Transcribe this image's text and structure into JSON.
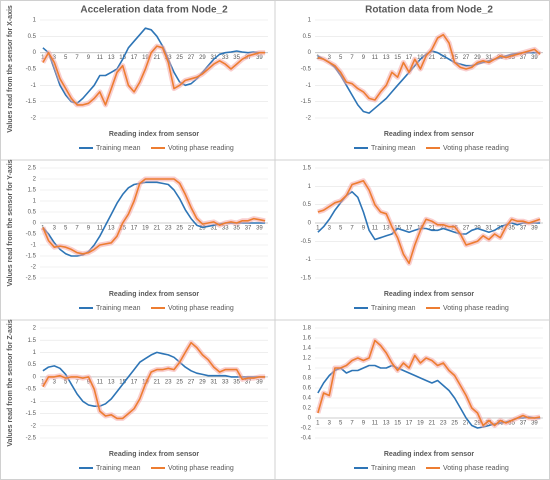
{
  "chart_data": [
    {
      "type": "line",
      "title": "Acceleration data from Node_2",
      "y_label": "Values read from the sensor for X-axis",
      "x_label": "Reading index from sensor",
      "categories": [
        1,
        null,
        3,
        null,
        5,
        null,
        7,
        null,
        9,
        null,
        11,
        null,
        13,
        null,
        15,
        null,
        17,
        null,
        19,
        null,
        21,
        null,
        23,
        null,
        25,
        null,
        27,
        null,
        29,
        null,
        31,
        null,
        33,
        null,
        35,
        null,
        37,
        null,
        39,
        null
      ],
      "ylim": [
        -2,
        1
      ],
      "yticks": [
        -2,
        -1.5,
        -1,
        -0.5,
        0,
        0.5,
        1
      ],
      "grid": true,
      "legend": "bottom",
      "series": [
        {
          "name": "Training mean",
          "color": "#2e75b6",
          "values": [
            0.15,
            0,
            -0.5,
            -1,
            -1.3,
            -1.5,
            -1.55,
            -1.4,
            -1.2,
            -1.0,
            -0.7,
            -0.7,
            -0.6,
            -0.5,
            -0.2,
            0.15,
            0.35,
            0.55,
            0.75,
            0.7,
            0.5,
            0.2,
            -0.2,
            -0.6,
            -0.9,
            -1.0,
            -0.95,
            -0.8,
            -0.6,
            -0.4,
            -0.2,
            -0.05,
            0,
            0.02,
            0.05,
            0.02,
            0,
            0.02,
            0,
            0
          ]
        },
        {
          "name": "Voting phase reading",
          "color": "#ed7d31",
          "values": [
            -0.3,
            0,
            -0.3,
            -0.8,
            -1.1,
            -1.4,
            -1.6,
            -1.6,
            -1.55,
            -1.4,
            -1.2,
            -1.6,
            -1.1,
            -0.6,
            -0.4,
            -1.0,
            -1.2,
            -0.9,
            -0.5,
            0,
            0.2,
            0.15,
            -0.3,
            -1.1,
            -1.0,
            -0.85,
            -0.8,
            -0.75,
            -0.65,
            -0.5,
            -0.35,
            -0.25,
            -0.35,
            -0.5,
            -0.35,
            -0.2,
            -0.1,
            -0.05,
            0,
            0
          ]
        }
      ]
    },
    {
      "type": "line",
      "title": "Rotation data from Node_2",
      "x_label": "Reading index from sensor",
      "categories": [
        1,
        null,
        3,
        null,
        5,
        null,
        7,
        null,
        9,
        null,
        11,
        null,
        13,
        null,
        15,
        null,
        17,
        null,
        19,
        null,
        21,
        null,
        23,
        null,
        25,
        null,
        27,
        null,
        29,
        null,
        31,
        null,
        33,
        null,
        35,
        null,
        37,
        null,
        39,
        null
      ],
      "ylim": [
        -2,
        1
      ],
      "yticks": [
        -2,
        -1.5,
        -1,
        -0.5,
        0,
        0.5,
        1
      ],
      "grid": true,
      "legend": "bottom",
      "series": [
        {
          "name": "Training mean",
          "color": "#2e75b6",
          "values": [
            -0.1,
            -0.2,
            -0.3,
            -0.45,
            -0.7,
            -1.0,
            -1.3,
            -1.6,
            -1.8,
            -1.85,
            -1.7,
            -1.55,
            -1.4,
            -1.2,
            -1.0,
            -0.8,
            -0.6,
            -0.4,
            -0.2,
            -0.05,
            0.05,
            0,
            -0.1,
            -0.2,
            -0.3,
            -0.35,
            -0.4,
            -0.4,
            -0.35,
            -0.3,
            -0.25,
            -0.2,
            -0.15,
            -0.1,
            -0.05,
            -0.03,
            0,
            0,
            0,
            0
          ]
        },
        {
          "name": "Voting phase reading",
          "color": "#ed7d31",
          "values": [
            -0.15,
            -0.2,
            -0.3,
            -0.4,
            -0.6,
            -0.9,
            -0.95,
            -1.1,
            -1.2,
            -1.4,
            -1.45,
            -1.2,
            -1.0,
            -0.6,
            -0.75,
            -0.3,
            -0.6,
            -0.2,
            -0.5,
            -0.1,
            0.1,
            0.45,
            0.55,
            0.3,
            -0.3,
            -0.45,
            -0.5,
            -0.45,
            -0.3,
            -0.25,
            -0.3,
            -0.2,
            -0.1,
            -0.15,
            -0.1,
            -0.05,
            0,
            0.05,
            0.1,
            -0.05
          ]
        }
      ]
    },
    {
      "type": "line",
      "y_label": "Values read from the sensor for Y-axis",
      "x_label": "Reading index from sensor",
      "categories": [
        1,
        null,
        3,
        null,
        5,
        null,
        7,
        null,
        9,
        null,
        11,
        null,
        13,
        null,
        15,
        null,
        17,
        null,
        19,
        null,
        21,
        null,
        23,
        null,
        25,
        null,
        27,
        null,
        29,
        null,
        31,
        null,
        33,
        null,
        35,
        null,
        37,
        null,
        39,
        null
      ],
      "ylim": [
        -2.5,
        2.5
      ],
      "yticks": [
        -2.5,
        -2,
        -1.5,
        -1,
        -0.5,
        0,
        0.5,
        1,
        1.5,
        2,
        2.5
      ],
      "grid": true,
      "legend": "bottom",
      "series": [
        {
          "name": "Training mean",
          "color": "#2e75b6",
          "values": [
            -0.2,
            -0.5,
            -0.9,
            -1.2,
            -1.4,
            -1.5,
            -1.5,
            -1.45,
            -1.3,
            -1.0,
            -0.6,
            -0.1,
            0.4,
            0.9,
            1.3,
            1.6,
            1.75,
            1.8,
            1.85,
            1.85,
            1.85,
            1.8,
            1.75,
            1.5,
            1.1,
            0.6,
            0.2,
            -0.1,
            -0.2,
            -0.15,
            -0.1,
            -0.05,
            0,
            0,
            0,
            0,
            0,
            0,
            0,
            0
          ]
        },
        {
          "name": "Voting phase reading",
          "color": "#ed7d31",
          "values": [
            -0.2,
            -0.8,
            -1.1,
            -1.05,
            -1.1,
            -1.2,
            -1.35,
            -1.4,
            -1.35,
            -1.2,
            -1.0,
            -0.95,
            -0.9,
            -0.6,
            0,
            0.4,
            1.0,
            1.8,
            2.0,
            2.0,
            2.0,
            2.0,
            2.0,
            2.0,
            1.8,
            1.3,
            0.7,
            0.2,
            -0.05,
            0,
            0.05,
            -0.1,
            0,
            0.05,
            0,
            0.1,
            0.1,
            0.2,
            0.15,
            0.1
          ]
        }
      ]
    },
    {
      "type": "line",
      "x_label": "Reading index from sensor",
      "categories": [
        1,
        null,
        3,
        null,
        5,
        null,
        7,
        null,
        9,
        null,
        11,
        null,
        13,
        null,
        15,
        null,
        17,
        null,
        19,
        null,
        21,
        null,
        23,
        null,
        25,
        null,
        27,
        null,
        29,
        null,
        31,
        null,
        33,
        null,
        35,
        null,
        37,
        null,
        39,
        null
      ],
      "ylim": [
        -1.5,
        1.5
      ],
      "yticks": [
        -1.5,
        -1,
        -0.5,
        0,
        0.5,
        1,
        1.5
      ],
      "grid": true,
      "legend": "bottom",
      "series": [
        {
          "name": "Training mean",
          "color": "#2e75b6",
          "values": [
            -0.25,
            -0.1,
            0.1,
            0.35,
            0.55,
            0.75,
            0.85,
            0.7,
            0.3,
            -0.2,
            -0.45,
            -0.4,
            -0.35,
            -0.3,
            -0.15,
            -0.2,
            -0.25,
            -0.2,
            -0.15,
            -0.15,
            -0.2,
            -0.2,
            -0.15,
            -0.2,
            -0.25,
            -0.3,
            -0.3,
            -0.2,
            -0.15,
            -0.2,
            -0.25,
            -0.2,
            -0.1,
            -0.05,
            0,
            -0.05,
            0,
            0,
            0,
            0
          ]
        },
        {
          "name": "Voting phase reading",
          "color": "#ed7d31",
          "values": [
            0.3,
            0.35,
            0.45,
            0.55,
            0.6,
            0.75,
            1.05,
            1.1,
            1.15,
            0.9,
            0.5,
            0.3,
            0.25,
            -0.1,
            -0.4,
            -0.85,
            -1.1,
            -0.6,
            -0.2,
            0.1,
            0.05,
            -0.05,
            -0.05,
            -0.1,
            -0.1,
            -0.3,
            -0.6,
            -0.55,
            -0.5,
            -0.35,
            -0.45,
            -0.3,
            -0.4,
            -0.1,
            0.1,
            0.05,
            0.05,
            0,
            0.05,
            0.1
          ]
        }
      ]
    },
    {
      "type": "line",
      "y_label": "Values read from the sensor for Z-axis",
      "x_label": "Reading index from sensor",
      "categories": [
        1,
        null,
        3,
        null,
        5,
        null,
        7,
        null,
        9,
        null,
        11,
        null,
        13,
        null,
        15,
        null,
        17,
        null,
        19,
        null,
        21,
        null,
        23,
        null,
        25,
        null,
        27,
        null,
        29,
        null,
        31,
        null,
        33,
        null,
        35,
        null,
        37,
        null,
        39,
        null
      ],
      "ylim": [
        -2.5,
        2
      ],
      "yticks": [
        -2.5,
        -2,
        -1.5,
        -1,
        -0.5,
        0,
        0.5,
        1,
        1.5,
        2
      ],
      "grid": true,
      "legend": "bottom",
      "series": [
        {
          "name": "Training mean",
          "color": "#2e75b6",
          "values": [
            0.25,
            0.4,
            0.45,
            0.35,
            0.1,
            -0.3,
            -0.7,
            -1.0,
            -1.15,
            -1.2,
            -1.2,
            -1.1,
            -0.9,
            -0.6,
            -0.3,
            0,
            0.3,
            0.6,
            0.75,
            0.9,
            1.0,
            0.95,
            0.9,
            0.8,
            0.6,
            0.4,
            0.25,
            0.15,
            0.1,
            0.05,
            0.05,
            0.05,
            0.05,
            0,
            0,
            0,
            0,
            0,
            0,
            0
          ]
        },
        {
          "name": "Voting phase reading",
          "color": "#ed7d31",
          "values": [
            -0.4,
            0,
            0,
            0.05,
            -0.05,
            0,
            0,
            -0.05,
            0,
            -0.5,
            -1.4,
            -1.6,
            -1.55,
            -1.7,
            -1.7,
            -1.5,
            -1.3,
            -0.9,
            -0.3,
            0.2,
            0.3,
            0.3,
            0.35,
            0.3,
            0.6,
            1.0,
            1.4,
            1.2,
            0.9,
            0.7,
            0.4,
            0.2,
            0.3,
            0.3,
            0.3,
            -0.1,
            -0.05,
            -0.05,
            0,
            0
          ]
        }
      ]
    },
    {
      "type": "line",
      "x_label": "Reading index from sensor",
      "categories": [
        1,
        null,
        3,
        null,
        5,
        null,
        7,
        null,
        9,
        null,
        11,
        null,
        13,
        null,
        15,
        null,
        17,
        null,
        19,
        null,
        21,
        null,
        23,
        null,
        25,
        null,
        27,
        null,
        29,
        null,
        31,
        null,
        33,
        null,
        35,
        null,
        37,
        null,
        39,
        null
      ],
      "ylim": [
        -0.4,
        1.8
      ],
      "yticks": [
        -0.4,
        -0.2,
        0,
        0.2,
        0.4,
        0.6,
        0.8,
        1,
        1.2,
        1.4,
        1.6,
        1.8
      ],
      "grid": true,
      "legend": "bottom",
      "series": [
        {
          "name": "Training mean",
          "color": "#2e75b6",
          "values": [
            0.5,
            0.7,
            0.85,
            0.95,
            1.0,
            0.9,
            0.95,
            0.95,
            1.0,
            1.05,
            1.05,
            1.0,
            1.0,
            1.05,
            1.0,
            0.95,
            0.9,
            0.85,
            0.8,
            0.75,
            0.7,
            0.75,
            0.65,
            0.55,
            0.4,
            0.2,
            0,
            -0.15,
            -0.2,
            -0.18,
            -0.15,
            -0.12,
            -0.1,
            -0.08,
            -0.05,
            0,
            0,
            0.02,
            0,
            0
          ]
        },
        {
          "name": "Voting phase reading",
          "color": "#ed7d31",
          "values": [
            0.1,
            0.5,
            0.45,
            1.0,
            1.0,
            1.05,
            1.15,
            1.2,
            1.15,
            1.2,
            1.55,
            1.45,
            1.3,
            1.1,
            0.95,
            1.1,
            1.0,
            1.25,
            1.1,
            1.2,
            1.15,
            1.05,
            1.1,
            0.95,
            0.85,
            0.65,
            0.45,
            0.2,
            0.1,
            -0.15,
            -0.05,
            -0.15,
            -0.05,
            -0.1,
            -0.05,
            0,
            0.05,
            0,
            0,
            0.02
          ]
        }
      ]
    }
  ]
}
